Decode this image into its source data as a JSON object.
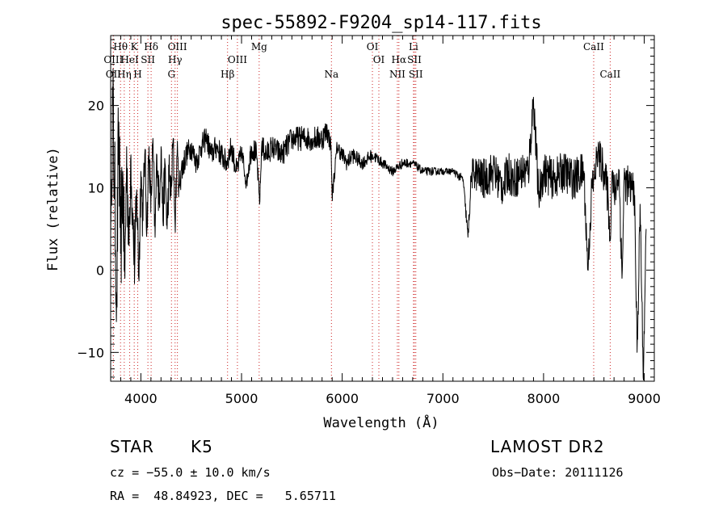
{
  "chart_data": {
    "type": "line",
    "title": "spec-55892-F9204_sp14-117.fits",
    "xlabel": "Wavelength (Å)",
    "ylabel": "Flux (relative)",
    "xlim": [
      3700,
      9100
    ],
    "ylim": [
      -13.5,
      28.5
    ],
    "xticks": [
      4000,
      5000,
      6000,
      7000,
      8000,
      9000
    ],
    "yticks": [
      -10,
      0,
      10,
      20
    ],
    "grid": false,
    "legend": "none",
    "line_color": "#000000",
    "marker_color": "#cc2222",
    "emission_lines": [
      {
        "label": "Hθ",
        "x": 3798,
        "row": 1
      },
      {
        "label": "OIII",
        "x": 3727,
        "row": 2
      },
      {
        "label": "OII",
        "x": 3727,
        "row": 3
      },
      {
        "label": "Hη",
        "x": 3835,
        "row": 3
      },
      {
        "label": "K",
        "x": 3934,
        "row": 1
      },
      {
        "label": "HeI",
        "x": 3889,
        "row": 2
      },
      {
        "label": "H",
        "x": 3969,
        "row": 3
      },
      {
        "label": "SII",
        "x": 4070,
        "row": 2
      },
      {
        "label": "Hδ",
        "x": 4102,
        "row": 1
      },
      {
        "label": "OIII",
        "x": 4363,
        "row": 1
      },
      {
        "label": "Hγ",
        "x": 4340,
        "row": 2
      },
      {
        "label": "G",
        "x": 4304,
        "row": 3
      },
      {
        "label": "Mg",
        "x": 5175,
        "row": 1
      },
      {
        "label": "OIII",
        "x": 4959,
        "row": 2
      },
      {
        "label": "Hβ",
        "x": 4861,
        "row": 3
      },
      {
        "label": "Na",
        "x": 5893,
        "row": 3
      },
      {
        "label": "OI",
        "x": 6300,
        "row": 1
      },
      {
        "label": "OI",
        "x": 6364,
        "row": 2
      },
      {
        "label": "Hα",
        "x": 6563,
        "row": 2
      },
      {
        "label": "NII",
        "x": 6548,
        "row": 3
      },
      {
        "label": "Li",
        "x": 6708,
        "row": 1
      },
      {
        "label": "SII",
        "x": 6717,
        "row": 2
      },
      {
        "label": "SII",
        "x": 6731,
        "row": 3
      },
      {
        "label": "CaII",
        "x": 8498,
        "row": 1
      },
      {
        "label": "CaII",
        "x": 8662,
        "row": 3
      }
    ],
    "series": [
      {
        "x": [
          3700,
          3720,
          3740,
          3760,
          3780,
          3800,
          3820,
          3840,
          3860,
          3880,
          3900,
          3920,
          3940,
          3960,
          3980,
          4000,
          4020,
          4040,
          4060,
          4080,
          4100,
          4120,
          4140,
          4160,
          4180,
          4200,
          4220,
          4240,
          4260,
          4280,
          4300,
          4320,
          4340,
          4360,
          4380,
          4400,
          4450,
          4500,
          4550,
          4600,
          4650,
          4700,
          4750,
          4800,
          4850,
          4900,
          4950,
          5000,
          5050,
          5100,
          5150,
          5180,
          5200,
          5250,
          5300,
          5400,
          5500,
          5600,
          5700,
          5800,
          5850,
          5890,
          5900,
          5950,
          6000,
          6050,
          6100,
          6200,
          6300,
          6400,
          6500,
          6600,
          6700,
          6800,
          6900,
          7000,
          7100,
          7200,
          7250,
          7280,
          7300,
          7400,
          7500,
          7600,
          7650,
          7700,
          7800,
          7850,
          7900,
          7950,
          8000,
          8100,
          8200,
          8300,
          8400,
          8440,
          8480,
          8500,
          8540,
          8600,
          8640,
          8660,
          8680,
          8700,
          8750,
          8780,
          8800,
          8850,
          8900,
          8930,
          8960,
          8990,
          9020
        ],
        "values": [
          4,
          20,
          10,
          -3,
          18,
          2,
          12,
          -1,
          15,
          3,
          14,
          5,
          1,
          9,
          -1,
          12,
          6,
          14,
          5,
          15,
          7,
          16,
          4,
          14,
          8,
          15,
          6,
          13,
          5,
          12,
          9,
          16,
          6,
          14,
          10,
          12,
          14,
          15,
          13,
          15,
          16,
          14,
          15,
          14,
          13,
          15,
          12,
          14,
          11,
          15,
          14,
          8,
          15,
          14,
          15,
          14,
          16,
          16,
          16,
          16,
          17,
          15,
          9,
          15,
          14,
          13,
          14,
          13,
          14,
          13,
          12,
          13,
          13,
          12,
          12,
          12,
          12,
          11,
          4,
          11,
          12,
          11,
          12,
          10,
          12,
          11,
          12,
          12,
          21,
          9,
          12,
          11,
          12,
          11,
          12,
          0,
          10,
          11,
          14,
          12,
          9,
          4,
          12,
          9,
          12,
          -1,
          11,
          10,
          10,
          -10,
          8,
          -13,
          5
        ],
        "noise_amplitude": [
          0,
          8,
          7,
          8,
          8,
          7,
          6,
          6,
          6,
          5,
          5,
          5,
          5,
          4,
          4,
          4,
          4,
          3,
          3,
          3,
          3,
          3,
          3,
          3,
          3,
          3,
          3,
          3,
          3,
          3,
          2.5,
          2.5,
          2.5,
          2.5,
          2,
          2,
          1.5,
          1.5,
          1.5,
          1.5,
          1.5,
          1.5,
          1.5,
          1.5,
          1.5,
          1.5,
          1.5,
          1.5,
          1.5,
          1.5,
          1.5,
          1,
          1.5,
          1.5,
          1.5,
          1.5,
          1.5,
          1.5,
          1.5,
          1.5,
          1.5,
          1,
          1,
          1,
          1,
          1,
          1,
          0.8,
          0.8,
          0.6,
          0.6,
          0.6,
          0.5,
          0.5,
          0.5,
          0.4,
          0.4,
          0.6,
          1,
          1.5,
          2,
          2.5,
          2.5,
          2.5,
          2.5,
          2.5,
          2.5,
          2.5,
          2.5,
          2.5,
          2.5,
          2.5,
          2.5,
          2.5,
          2.5,
          2,
          2.5,
          2.5,
          2.5,
          2.5,
          2.5,
          2.5,
          2.5,
          2.5,
          2.5,
          2.5,
          2.5,
          2.5,
          2.5,
          2,
          2.5,
          2,
          2
        ]
      }
    ]
  },
  "info": {
    "object_class": "STAR",
    "subclass": "K5",
    "survey": "LAMOST DR2",
    "cz_line": "cz = −55.0 ± 10.0 km/s",
    "obs_date_line": "Obs−Date: 20111126",
    "coords_line": "RA =  48.84923, DEC =   5.65711"
  }
}
